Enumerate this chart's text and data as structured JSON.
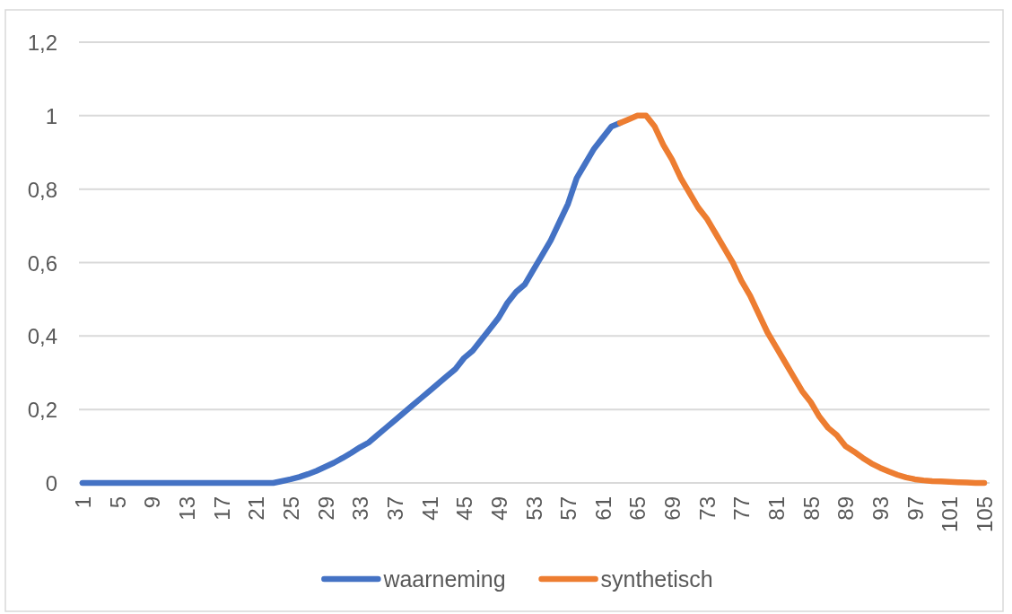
{
  "chart_data": {
    "type": "line",
    "categories": [
      "1",
      null,
      null,
      null,
      "5",
      null,
      null,
      null,
      "9",
      null,
      null,
      null,
      "13",
      null,
      null,
      null,
      "17",
      null,
      null,
      null,
      "21",
      null,
      null,
      null,
      "25",
      null,
      null,
      null,
      "29",
      null,
      null,
      null,
      "33",
      null,
      null,
      null,
      "37",
      null,
      null,
      null,
      "41",
      null,
      null,
      null,
      "45",
      null,
      null,
      null,
      "49",
      null,
      null,
      null,
      "53",
      null,
      null,
      null,
      "57",
      null,
      null,
      null,
      "61",
      null,
      null,
      null,
      "65",
      null,
      null,
      null,
      "69",
      null,
      null,
      null,
      "73",
      null,
      null,
      null,
      "77",
      null,
      null,
      null,
      "81",
      null,
      null,
      null,
      "85",
      null,
      null,
      null,
      "89",
      null,
      null,
      null,
      "93",
      null,
      null,
      null,
      "97",
      null,
      null,
      null,
      "101",
      null,
      null,
      null,
      "105"
    ],
    "series": [
      {
        "name": "waarneming",
        "color": "#4472c4",
        "values": [
          0,
          0,
          0,
          0,
          0,
          0,
          0,
          0,
          0,
          0,
          0,
          0,
          0,
          0,
          0,
          0,
          0,
          0,
          0,
          0,
          0,
          0,
          0,
          0.005,
          0.01,
          0.016,
          0.024,
          0.033,
          0.044,
          0.055,
          0.068,
          0.082,
          0.097,
          0.11,
          0.13,
          0.15,
          0.17,
          0.19,
          0.21,
          0.23,
          0.25,
          0.27,
          0.29,
          0.31,
          0.34,
          0.36,
          0.39,
          0.42,
          0.45,
          0.49,
          0.52,
          0.54,
          0.58,
          0.62,
          0.66,
          0.71,
          0.76,
          0.83,
          0.87,
          0.91,
          0.94,
          0.97,
          0.98,
          null,
          null,
          null,
          null,
          null,
          null,
          null,
          null,
          null,
          null,
          null,
          null,
          null,
          null,
          null,
          null,
          null,
          null,
          null,
          null,
          null,
          null,
          null,
          null,
          null,
          null,
          null,
          null,
          null,
          null,
          null,
          null,
          null,
          null,
          null,
          null,
          null,
          null,
          null,
          null,
          null,
          null
        ]
      },
      {
        "name": "synthetisch",
        "color": "#ed7d31",
        "values": [
          null,
          null,
          null,
          null,
          null,
          null,
          null,
          null,
          null,
          null,
          null,
          null,
          null,
          null,
          null,
          null,
          null,
          null,
          null,
          null,
          null,
          null,
          null,
          null,
          null,
          null,
          null,
          null,
          null,
          null,
          null,
          null,
          null,
          null,
          null,
          null,
          null,
          null,
          null,
          null,
          null,
          null,
          null,
          null,
          null,
          null,
          null,
          null,
          null,
          null,
          null,
          null,
          null,
          null,
          null,
          null,
          null,
          null,
          null,
          null,
          null,
          null,
          0.98,
          0.99,
          1,
          1,
          0.97,
          0.92,
          0.88,
          0.83,
          0.79,
          0.75,
          0.72,
          0.68,
          0.64,
          0.6,
          0.55,
          0.51,
          0.46,
          0.41,
          0.37,
          0.33,
          0.29,
          0.25,
          0.22,
          0.18,
          0.15,
          0.13,
          0.1,
          0.085,
          0.068,
          0.053,
          0.041,
          0.031,
          0.022,
          0.015,
          0.01,
          0.007,
          0.005,
          0.004,
          0.003,
          0.002,
          0.001,
          0,
          0
        ]
      }
    ],
    "ylim": [
      0,
      1.2
    ],
    "yticks": [
      0,
      {
        "value": 0.2,
        "label": "0,2"
      },
      {
        "value": 0.4,
        "label": "0,4"
      },
      {
        "value": 0.6,
        "label": "0,6"
      },
      {
        "value": 0.8,
        "label": "0,8"
      },
      1,
      {
        "value": 1.2,
        "label": "1,2"
      }
    ],
    "grid": "y",
    "legend": "bottom",
    "line_style": "solid"
  }
}
